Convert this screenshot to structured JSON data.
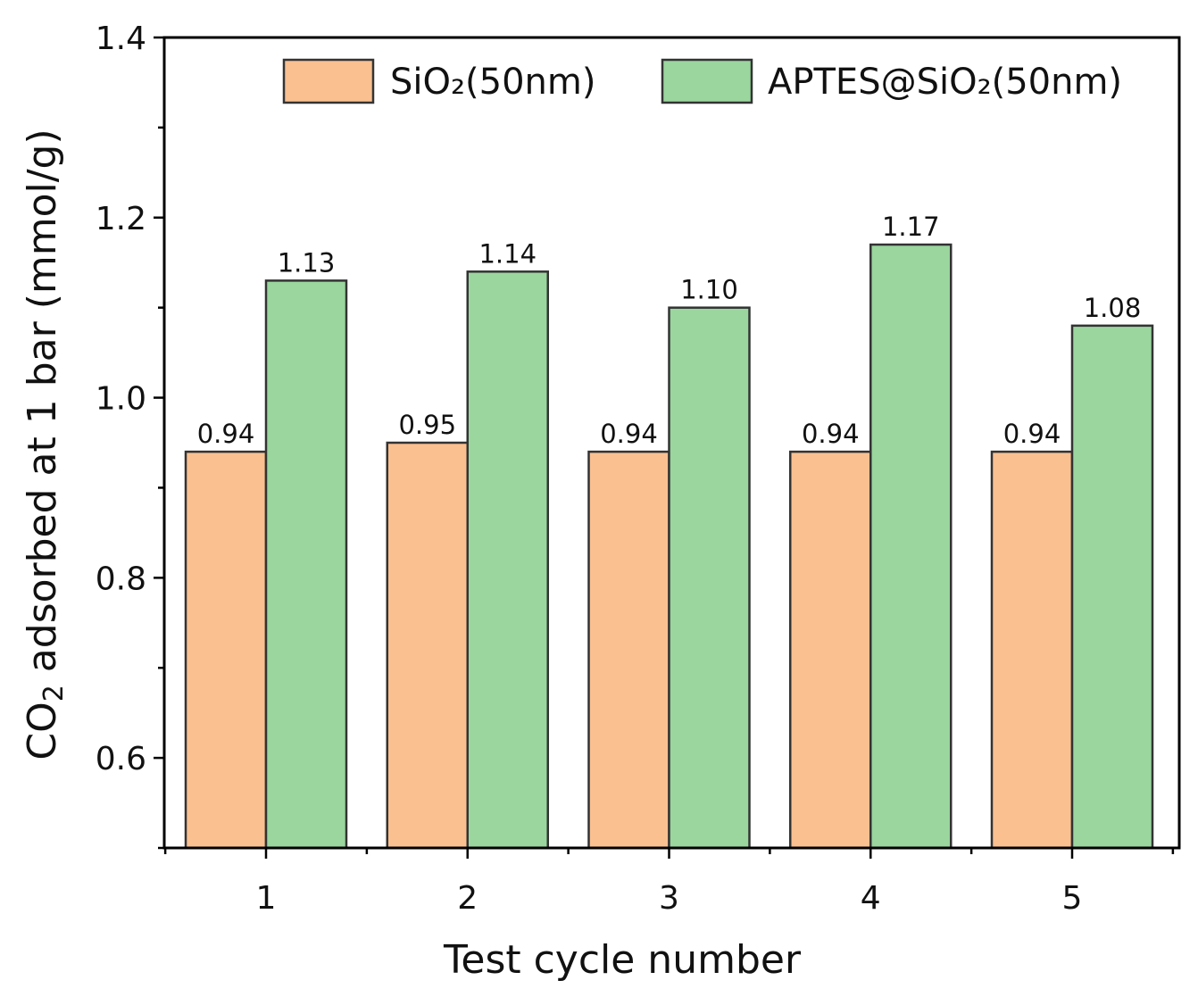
{
  "chart_data": {
    "type": "bar",
    "title": "",
    "xlabel": "Test cycle number",
    "ylabel_parts": [
      "CO",
      "2",
      " adsorbed at 1 bar (mmol/g)"
    ],
    "ylim": [
      0.5,
      1.4
    ],
    "y_ticks": [
      "0.6",
      "0.8",
      "1.0",
      "1.2",
      "1.4"
    ],
    "categories": [
      "1",
      "2",
      "3",
      "4",
      "5"
    ],
    "series": [
      {
        "name": "SiO₂(50nm)",
        "color": "#FAC090",
        "values": [
          0.94,
          0.95,
          0.94,
          0.94,
          0.94
        ],
        "labels": [
          "0.94",
          "0.95",
          "0.94",
          "0.94",
          "0.94"
        ]
      },
      {
        "name": "APTES@SiO₂(50nm)",
        "color": "#9AD69E",
        "values": [
          1.13,
          1.14,
          1.1,
          1.17,
          1.08
        ],
        "labels": [
          "1.13",
          "1.14",
          "1.10",
          "1.17",
          "1.08"
        ]
      }
    ],
    "legend": "top-right",
    "grid": false
  }
}
